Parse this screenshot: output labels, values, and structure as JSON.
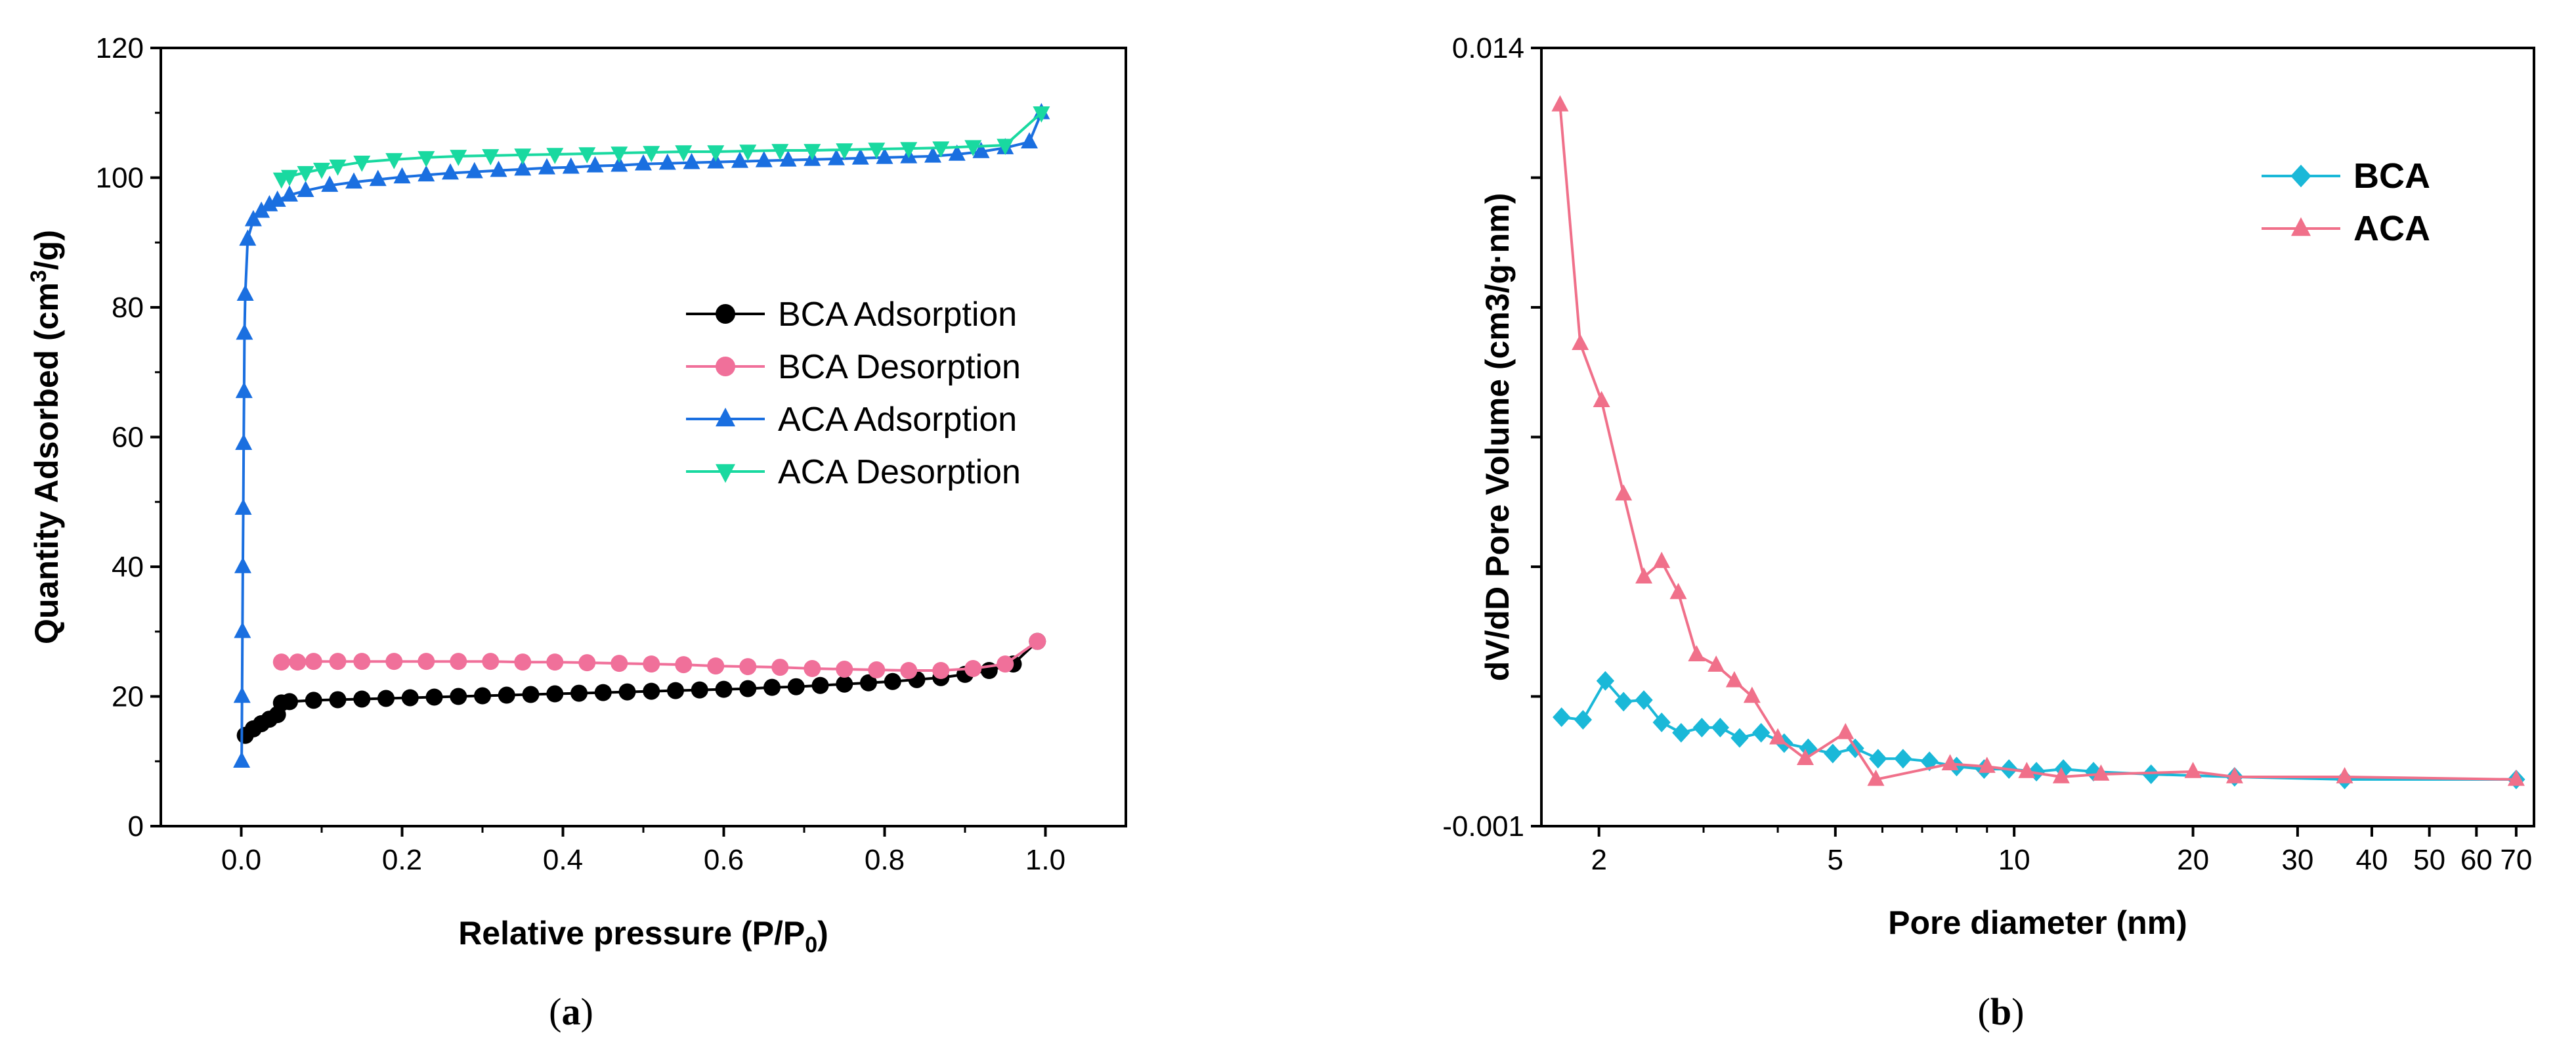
{
  "chart_data": [
    {
      "type": "scatter",
      "panel_label": "a",
      "xlabel": "Relative pressure (P/P",
      "xlabel_subscript": "0",
      "xlabel_suffix": ")",
      "ylabel_prefix": "Quantity Adsorbed (cm",
      "ylabel_superscript": "3",
      "ylabel_suffix": "/g)",
      "xlim": [
        -0.1,
        1.1
      ],
      "ylim": [
        0,
        120
      ],
      "x_ticks": [
        "0.0",
        "0.2",
        "0.4",
        "0.6",
        "0.8",
        "1.0"
      ],
      "x_tick_values": [
        0,
        0.2,
        0.4,
        0.6,
        0.8,
        1.0
      ],
      "y_ticks": [
        "0",
        "20",
        "40",
        "60",
        "80",
        "100",
        "120"
      ],
      "y_tick_values": [
        0,
        20,
        40,
        60,
        80,
        100,
        120
      ],
      "legend_position": "center-right",
      "series": [
        {
          "name": "BCA Adsorption",
          "color": "#000000",
          "marker": "circle",
          "x": [
            0.005,
            0.015,
            0.025,
            0.035,
            0.045,
            0.05,
            0.06,
            0.09,
            0.12,
            0.15,
            0.18,
            0.21,
            0.24,
            0.27,
            0.3,
            0.33,
            0.36,
            0.39,
            0.42,
            0.45,
            0.48,
            0.51,
            0.54,
            0.57,
            0.6,
            0.63,
            0.66,
            0.69,
            0.72,
            0.75,
            0.78,
            0.81,
            0.84,
            0.87,
            0.9,
            0.93,
            0.96,
            0.99
          ],
          "y": [
            14.0,
            15.0,
            15.8,
            16.5,
            17.2,
            19.0,
            19.2,
            19.4,
            19.5,
            19.6,
            19.7,
            19.8,
            19.9,
            20.0,
            20.1,
            20.2,
            20.3,
            20.4,
            20.5,
            20.6,
            20.7,
            20.8,
            20.9,
            21.0,
            21.1,
            21.2,
            21.4,
            21.5,
            21.7,
            21.9,
            22.1,
            22.3,
            22.6,
            22.9,
            23.4,
            24.0,
            25.0,
            28.5
          ]
        },
        {
          "name": "BCA Desorption",
          "color": "#f0709a",
          "marker": "circle",
          "x": [
            0.99,
            0.95,
            0.91,
            0.87,
            0.83,
            0.79,
            0.75,
            0.71,
            0.67,
            0.63,
            0.59,
            0.55,
            0.51,
            0.47,
            0.43,
            0.39,
            0.35,
            0.31,
            0.27,
            0.23,
            0.19,
            0.15,
            0.12,
            0.09,
            0.07,
            0.05
          ],
          "y": [
            28.5,
            25.0,
            24.3,
            24.0,
            24.0,
            24.1,
            24.2,
            24.3,
            24.5,
            24.6,
            24.7,
            24.9,
            25.0,
            25.1,
            25.2,
            25.3,
            25.3,
            25.4,
            25.4,
            25.4,
            25.4,
            25.4,
            25.4,
            25.4,
            25.3,
            25.3
          ]
        },
        {
          "name": "ACA Adsorption",
          "color": "#1a6fe0",
          "marker": "triangle-up",
          "x": [
            0.0005,
            0.001,
            0.0015,
            0.002,
            0.0025,
            0.003,
            0.0035,
            0.004,
            0.005,
            0.008,
            0.015,
            0.025,
            0.035,
            0.045,
            0.06,
            0.08,
            0.11,
            0.14,
            0.17,
            0.2,
            0.23,
            0.26,
            0.29,
            0.32,
            0.35,
            0.38,
            0.41,
            0.44,
            0.47,
            0.5,
            0.53,
            0.56,
            0.59,
            0.62,
            0.65,
            0.68,
            0.71,
            0.74,
            0.77,
            0.8,
            0.83,
            0.86,
            0.89,
            0.92,
            0.95,
            0.98,
            0.995
          ],
          "y": [
            10,
            20,
            30,
            40,
            49,
            59,
            67,
            76,
            82,
            90.5,
            93.5,
            94.8,
            95.8,
            96.5,
            97.3,
            98.0,
            98.8,
            99.3,
            99.7,
            100.1,
            100.4,
            100.7,
            100.9,
            101.1,
            101.3,
            101.5,
            101.6,
            101.8,
            101.9,
            102.1,
            102.2,
            102.3,
            102.4,
            102.5,
            102.6,
            102.7,
            102.8,
            102.9,
            103.0,
            103.1,
            103.2,
            103.3,
            103.6,
            104.0,
            104.6,
            105.5,
            110.0
          ]
        },
        {
          "name": "ACA Desorption",
          "color": "#19d9a0",
          "marker": "triangle-down",
          "x": [
            0.995,
            0.95,
            0.91,
            0.87,
            0.83,
            0.79,
            0.75,
            0.71,
            0.67,
            0.63,
            0.59,
            0.55,
            0.51,
            0.47,
            0.43,
            0.39,
            0.35,
            0.31,
            0.27,
            0.23,
            0.19,
            0.15,
            0.12,
            0.1,
            0.08,
            0.06,
            0.05
          ],
          "y": [
            110.0,
            105.0,
            104.8,
            104.6,
            104.5,
            104.4,
            104.3,
            104.2,
            104.2,
            104.1,
            104.0,
            104.0,
            103.9,
            103.8,
            103.7,
            103.6,
            103.5,
            103.4,
            103.3,
            103.1,
            102.8,
            102.4,
            101.8,
            101.3,
            100.8,
            100.2,
            99.8
          ]
        }
      ]
    },
    {
      "type": "line",
      "panel_label": "b",
      "xlabel": "Pore diameter (nm)",
      "ylabel": "dV/dD Pore Volume (cm3/g·nm)",
      "x_scale": "log",
      "xlim": [
        1.6,
        75
      ],
      "ylim": [
        -0.001,
        0.014
      ],
      "x_ticks": [
        "2",
        "5",
        "10",
        "20",
        "30",
        "40",
        "50",
        "60",
        "70"
      ],
      "x_tick_values": [
        2,
        5,
        10,
        20,
        30,
        40,
        50,
        60,
        70
      ],
      "x_minor_ticks": [
        3,
        4,
        6,
        7,
        8,
        9
      ],
      "y_ticks": [
        "0.014",
        "-0.001"
      ],
      "y_tick_values": [
        0.014,
        -0.001
      ],
      "y_minor_ticks": [
        0.0015,
        0.004,
        0.0065,
        0.009,
        0.0115
      ],
      "legend_position": "top-right",
      "series": [
        {
          "name": "BCA",
          "color": "#1ab8d8",
          "marker": "diamond",
          "x": [
            1.73,
            1.88,
            2.05,
            2.2,
            2.38,
            2.55,
            2.75,
            2.98,
            3.2,
            3.45,
            3.75,
            4.1,
            4.5,
            4.95,
            5.4,
            5.9,
            6.5,
            7.2,
            8.0,
            8.9,
            9.8,
            10.9,
            12.1,
            13.6,
            17.0,
            23.5,
            36.0,
            70.0
          ],
          "y": [
            0.0011,
            0.00105,
            0.0018,
            0.0014,
            0.00143,
            0.001,
            0.0008,
            0.0009,
            0.0009,
            0.0007,
            0.0008,
            0.0006,
            0.0005,
            0.0004,
            0.0005,
            0.0003,
            0.0003,
            0.00025,
            0.00015,
            0.0001,
            0.0001,
            5e-05,
            0.0001,
            5e-05,
            0.0,
            -5e-05,
            -0.0001,
            -0.0001
          ]
        },
        {
          "name": "ACA",
          "color": "#f0708a",
          "marker": "triangle-up",
          "x": [
            1.72,
            1.86,
            2.02,
            2.2,
            2.38,
            2.55,
            2.72,
            2.92,
            3.15,
            3.38,
            3.62,
            4.0,
            4.45,
            5.2,
            5.85,
            7.8,
            9.0,
            10.5,
            12.0,
            14.0,
            20.0,
            23.5,
            36.0,
            70.0
          ],
          "y": [
            0.0129,
            0.0083,
            0.0072,
            0.0054,
            0.0038,
            0.0041,
            0.0035,
            0.0023,
            0.0021,
            0.0018,
            0.0015,
            0.0007,
            0.0003,
            0.0008,
            -0.0001,
            0.0002,
            0.00015,
            5e-05,
            -5e-05,
            0.0,
            5e-05,
            -5e-05,
            -5e-05,
            -0.0001
          ]
        }
      ]
    }
  ]
}
